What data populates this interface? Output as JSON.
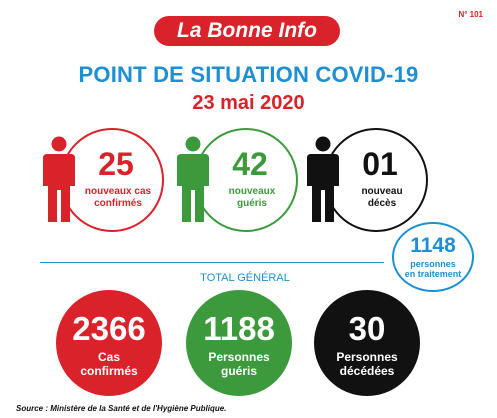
{
  "issue": "N° 101",
  "brand": "La Bonne Info",
  "title": "POINT DE SITUATION COVID-19",
  "date": "23 mai 2020",
  "daily": [
    {
      "number": "25",
      "label_1": "nouveaux cas",
      "label_2": "confirmés",
      "color": "#d9222a"
    },
    {
      "number": "42",
      "label_1": "nouveaux",
      "label_2": "guéris",
      "color": "#3c9a3c"
    },
    {
      "number": "01",
      "label_1": "nouveau",
      "label_2": "décès",
      "color": "#111111"
    }
  ],
  "treatment": {
    "number": "1148",
    "label_1": "personnes",
    "label_2": "en traitement",
    "color": "#1d8fd3"
  },
  "total_label": "TOTAL GÉNÉRAL",
  "totals": [
    {
      "number": "2366",
      "label_1": "Cas",
      "label_2": "confirmés",
      "color": "#d9222a"
    },
    {
      "number": "1188",
      "label_1": "Personnes",
      "label_2": "guéris",
      "color": "#3c9a3c"
    },
    {
      "number": "30",
      "label_1": "Personnes",
      "label_2": "décédées",
      "color": "#111111"
    }
  ],
  "source": "Source : Ministère de la Santé et de l'Hygiène Publique."
}
